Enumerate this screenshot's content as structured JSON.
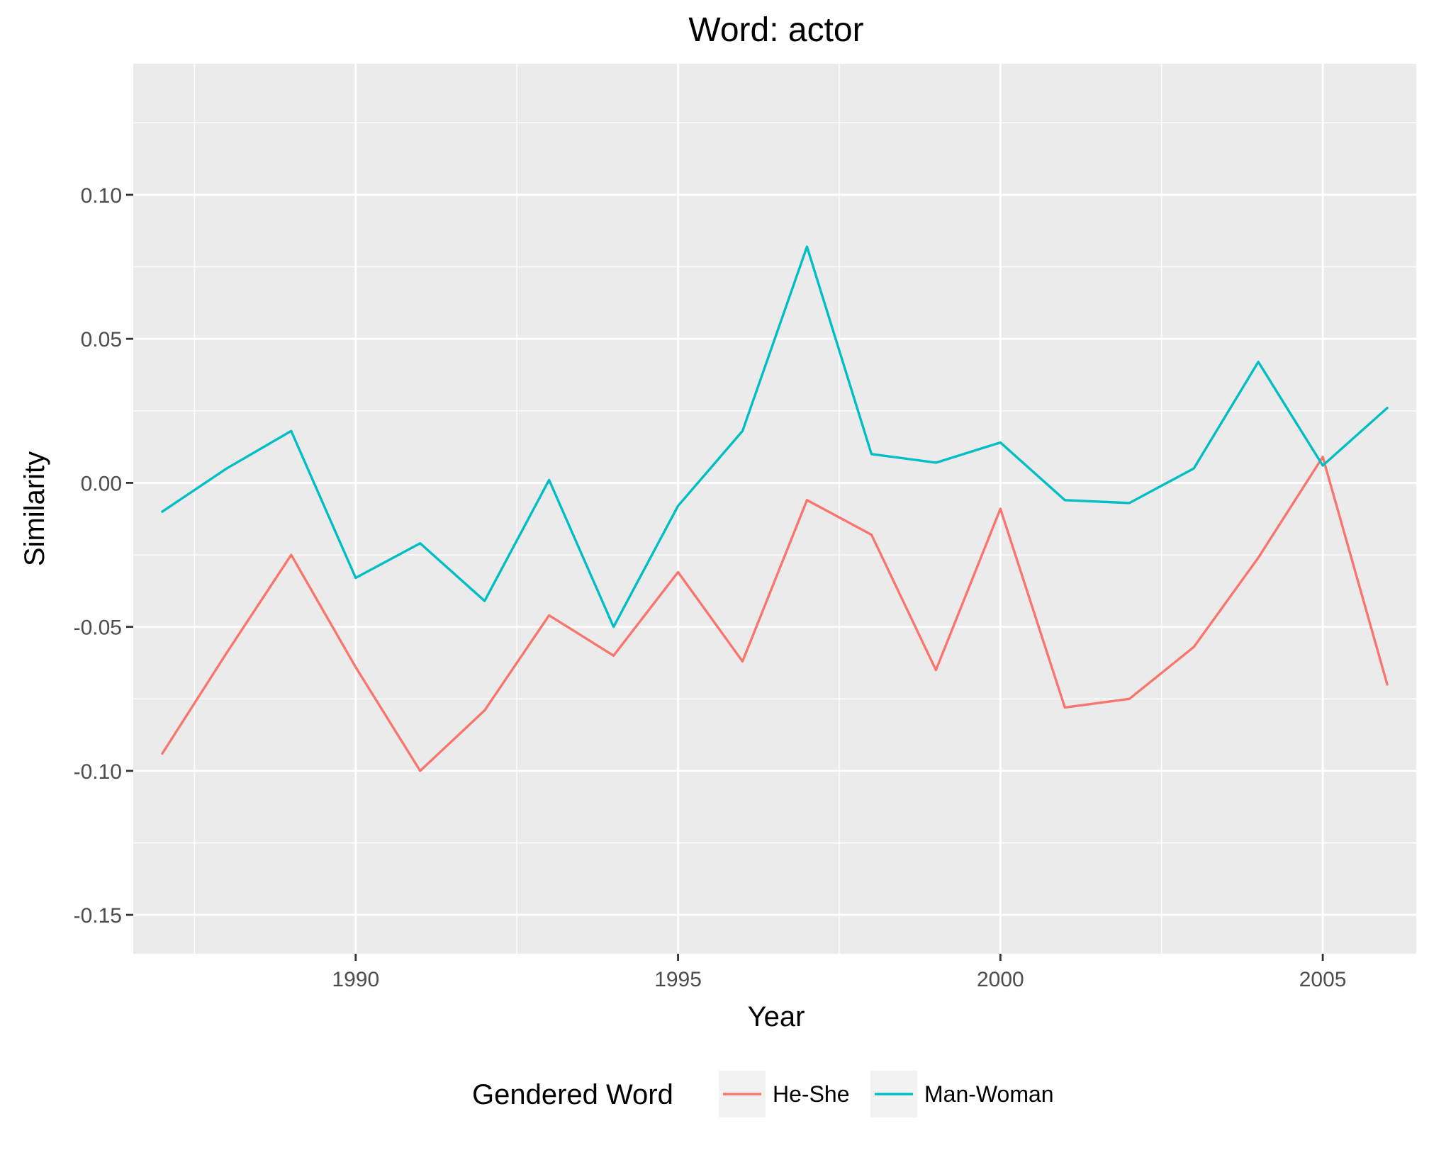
{
  "chart_data": {
    "type": "line",
    "title": "Word: actor",
    "xlabel": "Year",
    "ylabel": "Similarity",
    "xlim": [
      1986.55,
      2006.45
    ],
    "ylim": [
      -0.1635,
      0.1455
    ],
    "x_ticks": [
      1990,
      1995,
      2000,
      2005
    ],
    "x_tick_labels": [
      "1990",
      "1995",
      "2000",
      "2005"
    ],
    "y_ticks": [
      -0.15,
      -0.1,
      -0.05,
      0.0,
      0.05,
      0.1
    ],
    "y_tick_labels": [
      "-0.15",
      "-0.10",
      "-0.05",
      "0.00",
      "0.05",
      "0.10"
    ],
    "grid": true,
    "legend": {
      "title": "Gendered Word",
      "position": "bottom"
    },
    "x": [
      1987,
      1988,
      1989,
      1990,
      1991,
      1992,
      1993,
      1994,
      1995,
      1996,
      1997,
      1998,
      1999,
      2000,
      2001,
      2002,
      2003,
      2004,
      2005,
      2006
    ],
    "series": [
      {
        "name": "He-She",
        "color": "#F8766D",
        "values": [
          -0.094,
          -0.059,
          -0.025,
          -0.064,
          -0.1,
          -0.079,
          -0.046,
          -0.06,
          -0.031,
          -0.062,
          -0.006,
          -0.018,
          -0.065,
          -0.009,
          -0.078,
          -0.075,
          -0.057,
          -0.026,
          0.009,
          -0.07
        ]
      },
      {
        "name": "Man-Woman",
        "color": "#00BFC4",
        "values": [
          -0.01,
          0.005,
          0.018,
          -0.033,
          -0.021,
          -0.041,
          0.001,
          -0.05,
          -0.008,
          0.018,
          0.082,
          0.01,
          0.007,
          0.014,
          -0.006,
          -0.007,
          0.005,
          0.042,
          0.006,
          0.026
        ]
      }
    ]
  }
}
